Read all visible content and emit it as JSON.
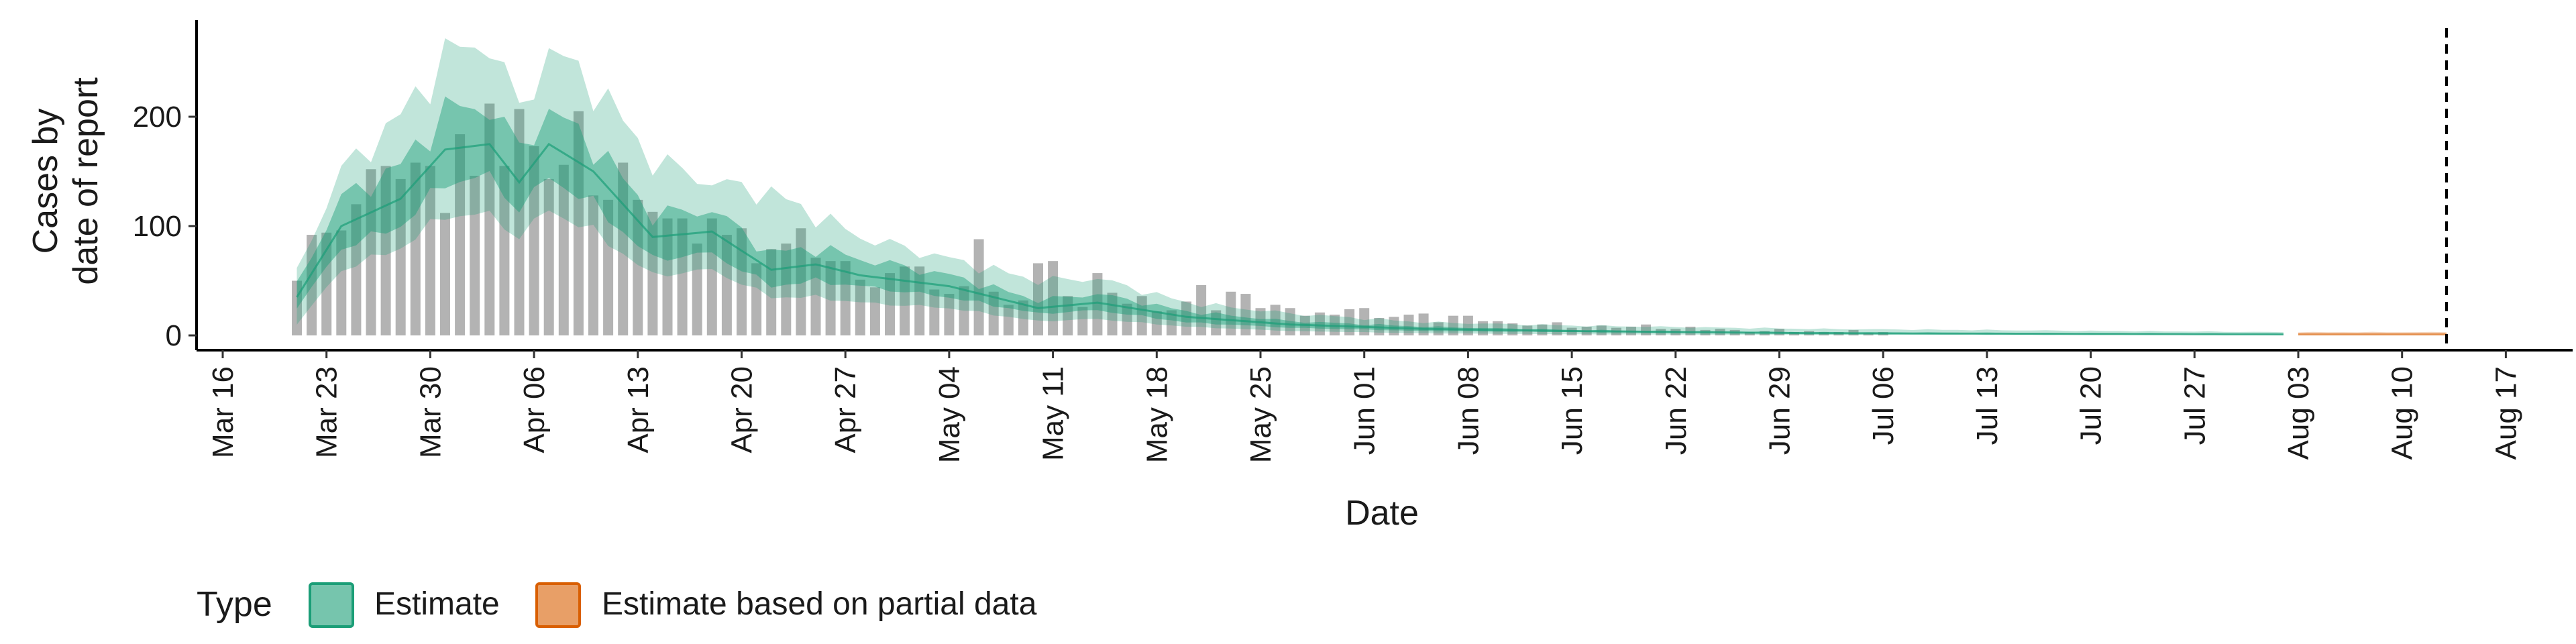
{
  "chart_data": {
    "type": "bar",
    "xlabel": "Date",
    "ylabel": [
      "Cases by",
      "date of report"
    ],
    "ylim": [
      0,
      290
    ],
    "yticks": [
      0,
      100,
      200
    ],
    "xticks": [
      "Mar 16",
      "Mar 23",
      "Mar 30",
      "Apr 06",
      "Apr 13",
      "Apr 20",
      "Apr 27",
      "May 04",
      "May 11",
      "May 18",
      "May 25",
      "Jun 01",
      "Jun 08",
      "Jun 15",
      "Jun 22",
      "Jun 29",
      "Jul 06",
      "Jul 13",
      "Jul 20",
      "Jul 27",
      "Aug 03",
      "Aug 10",
      "Aug 17"
    ],
    "x_start": "2020-03-21",
    "reported_cases": [
      50,
      92,
      94,
      96,
      120,
      152,
      155,
      143,
      158,
      155,
      112,
      184,
      146,
      212,
      155,
      207,
      173,
      143,
      156,
      205,
      128,
      124,
      158,
      124,
      113,
      107,
      107,
      84,
      107,
      92,
      98,
      66,
      79,
      84,
      98,
      71,
      68,
      68,
      51,
      44,
      57,
      63,
      63,
      42,
      38,
      45,
      88,
      40,
      28,
      32,
      66,
      68,
      36,
      26,
      57,
      39,
      29,
      36,
      22,
      23,
      31,
      46,
      23,
      40,
      38,
      25,
      28,
      25,
      18,
      21,
      19,
      24,
      25,
      16,
      17,
      19,
      20,
      12,
      18,
      18,
      13,
      13,
      11,
      9,
      10,
      12,
      7,
      8,
      9,
      7,
      8,
      10,
      6,
      6,
      8,
      5,
      6,
      5,
      3,
      4,
      6,
      3,
      4,
      3,
      3,
      5,
      2,
      3
    ],
    "estimate": {
      "start": "2020-03-21",
      "end": "2020-08-02",
      "control_points": [
        {
          "date": "2020-03-21",
          "median": 35,
          "inner": [
            25,
            48
          ],
          "outer": [
            10,
            60
          ]
        },
        {
          "date": "2020-03-24",
          "median": 100,
          "inner": [
            80,
            125
          ],
          "outer": [
            60,
            150
          ]
        },
        {
          "date": "2020-03-28",
          "median": 125,
          "inner": [
            100,
            155
          ],
          "outer": [
            80,
            200
          ]
        },
        {
          "date": "2020-03-31",
          "median": 170,
          "inner": [
            140,
            205
          ],
          "outer": [
            110,
            255
          ]
        },
        {
          "date": "2020-04-03",
          "median": 175,
          "inner": [
            145,
            210
          ],
          "outer": [
            110,
            270
          ]
        },
        {
          "date": "2020-04-05",
          "median": 140,
          "inner": [
            115,
            170
          ],
          "outer": [
            90,
            205
          ]
        },
        {
          "date": "2020-04-07",
          "median": 175,
          "inner": [
            145,
            205
          ],
          "outer": [
            115,
            260
          ]
        },
        {
          "date": "2020-04-10",
          "median": 150,
          "inner": [
            120,
            175
          ],
          "outer": [
            95,
            230
          ]
        },
        {
          "date": "2020-04-14",
          "median": 90,
          "inner": [
            70,
            110
          ],
          "outer": [
            55,
            160
          ]
        },
        {
          "date": "2020-04-18",
          "median": 95,
          "inner": [
            75,
            115
          ],
          "outer": [
            60,
            140
          ]
        },
        {
          "date": "2020-04-22",
          "median": 60,
          "inner": [
            45,
            75
          ],
          "outer": [
            35,
            130
          ]
        },
        {
          "date": "2020-04-25",
          "median": 65,
          "inner": [
            50,
            80
          ],
          "outer": [
            35,
            110
          ]
        },
        {
          "date": "2020-04-28",
          "median": 55,
          "inner": [
            45,
            70
          ],
          "outer": [
            30,
            90
          ]
        },
        {
          "date": "2020-05-04",
          "median": 45,
          "inner": [
            35,
            55
          ],
          "outer": [
            25,
            70
          ]
        },
        {
          "date": "2020-05-10",
          "median": 25,
          "inner": [
            20,
            32
          ],
          "outer": [
            13,
            50
          ]
        },
        {
          "date": "2020-05-14",
          "median": 30,
          "inner": [
            23,
            38
          ],
          "outer": [
            15,
            52
          ]
        },
        {
          "date": "2020-05-20",
          "median": 17,
          "inner": [
            12,
            22
          ],
          "outer": [
            8,
            30
          ]
        },
        {
          "date": "2020-05-27",
          "median": 10,
          "inner": [
            7,
            13
          ],
          "outer": [
            4,
            20
          ]
        },
        {
          "date": "2020-06-05",
          "median": 6,
          "inner": [
            4,
            8
          ],
          "outer": [
            2,
            12
          ]
        },
        {
          "date": "2020-06-15",
          "median": 4,
          "inner": [
            3,
            5
          ],
          "outer": [
            1,
            9
          ]
        },
        {
          "date": "2020-07-01",
          "median": 2,
          "inner": [
            1.5,
            3
          ],
          "outer": [
            0.5,
            6
          ]
        },
        {
          "date": "2020-08-02",
          "median": 1,
          "inner": [
            0.5,
            1.5
          ],
          "outer": [
            0.2,
            3
          ]
        }
      ]
    },
    "estimate_partial": {
      "start": "2020-08-03",
      "end": "2020-08-13",
      "median": 1,
      "inner": [
        0.5,
        1.5
      ],
      "outer": [
        0.2,
        3
      ]
    },
    "vline_date": "2020-08-13",
    "legend": {
      "title": "Type",
      "items": [
        {
          "label": "Estimate",
          "color": "#1b9e77"
        },
        {
          "label": "Estimate based on partial data",
          "color": "#d95f02"
        }
      ]
    },
    "colors": {
      "bars": "#b3b3b3",
      "estimate": "#1b9e77",
      "partial": "#d95f02"
    }
  }
}
